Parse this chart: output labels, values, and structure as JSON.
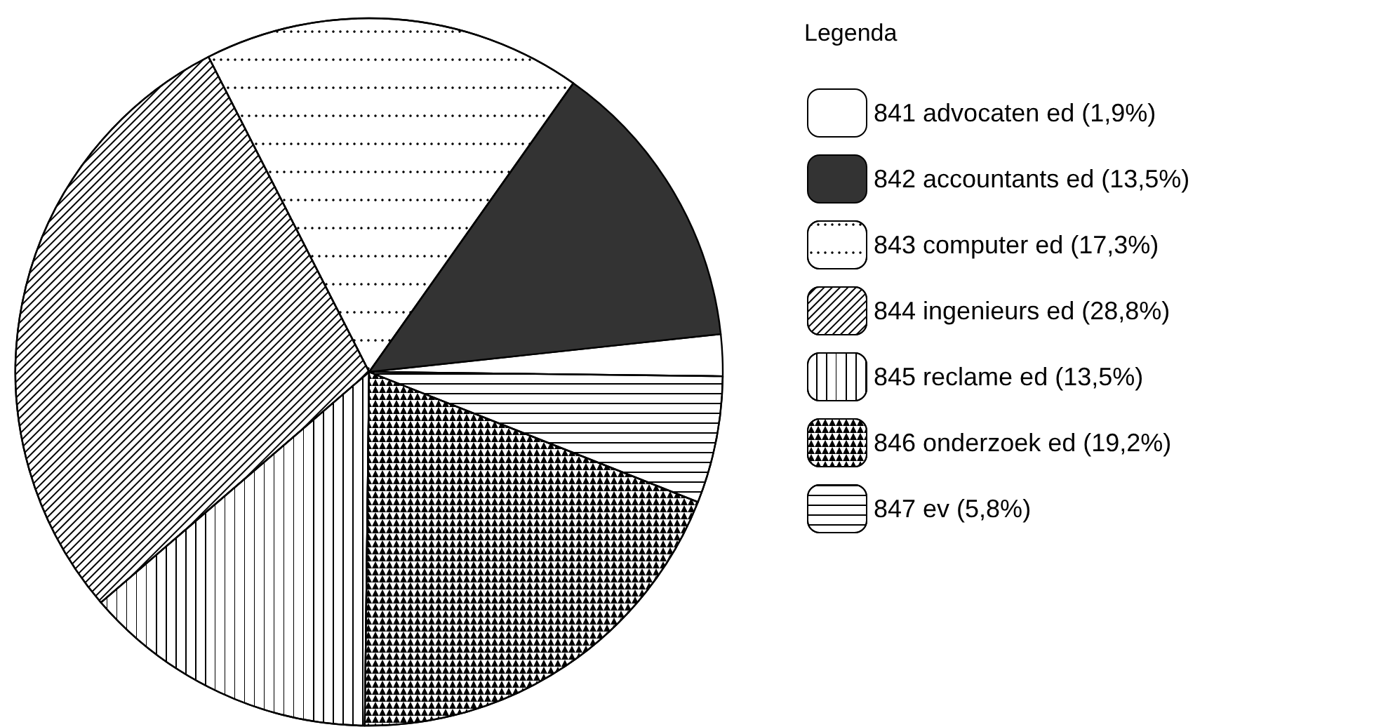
{
  "chart_data": {
    "type": "pie",
    "legend_title": "Legenda",
    "legend": "right",
    "categories": [
      "841 advocaten ed (1,9%)",
      "842 accountants ed (13,5%)",
      "843 computer ed (17,3%)",
      "844 ingenieurs ed (28,8%)",
      "845 reclame ed (13,5%)",
      "846 onderzoek ed (19,2%)",
      "847 ev (5,8%)"
    ],
    "values": [
      1.9,
      13.5,
      17.3,
      28.8,
      13.5,
      19.2,
      5.8
    ],
    "colors": [
      "#ffffff",
      "#333333",
      "#ffffff",
      "#ffffff",
      "#ffffff",
      "#ffffff",
      "#ffffff"
    ]
  }
}
